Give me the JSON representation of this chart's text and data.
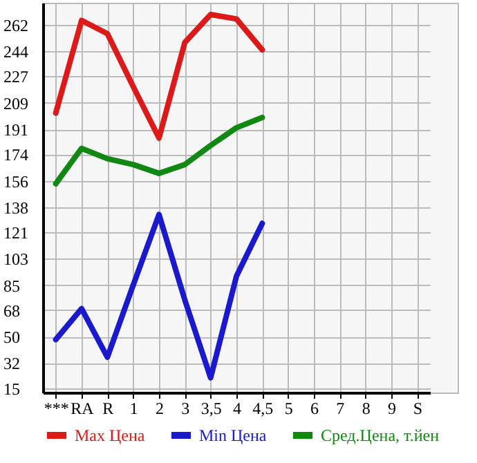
{
  "chart_data": {
    "type": "line",
    "categories": [
      "***",
      "RA",
      "R",
      "1",
      "2",
      "3",
      "3,5",
      "4",
      "4,5",
      "5",
      "6",
      "7",
      "8",
      "9",
      "S"
    ],
    "series": [
      {
        "name": "Max Цена",
        "color": "#dd1a1a",
        "values": [
          202,
          265,
          256,
          220,
          185,
          250,
          269,
          266,
          245,
          null,
          null,
          null,
          null,
          null,
          null
        ]
      },
      {
        "name": "Min Цена",
        "color": "#1a1acc",
        "values": [
          48,
          69,
          36,
          85,
          133,
          75,
          22,
          91,
          127,
          null,
          null,
          null,
          null,
          null,
          null
        ]
      },
      {
        "name": "Сред.Цена, т.йен",
        "color": "#118811",
        "values": [
          154,
          178,
          171,
          167,
          161,
          167,
          180,
          192,
          199,
          null,
          null,
          null,
          null,
          null,
          null
        ]
      }
    ],
    "ylim": [
      12,
      277
    ],
    "yticks": [
      15,
      32,
      50,
      68,
      85,
      103,
      121,
      138,
      156,
      174,
      191,
      209,
      227,
      244,
      262
    ],
    "grid": true,
    "legend": "bottom",
    "marker": "none",
    "line_style": "solid"
  }
}
